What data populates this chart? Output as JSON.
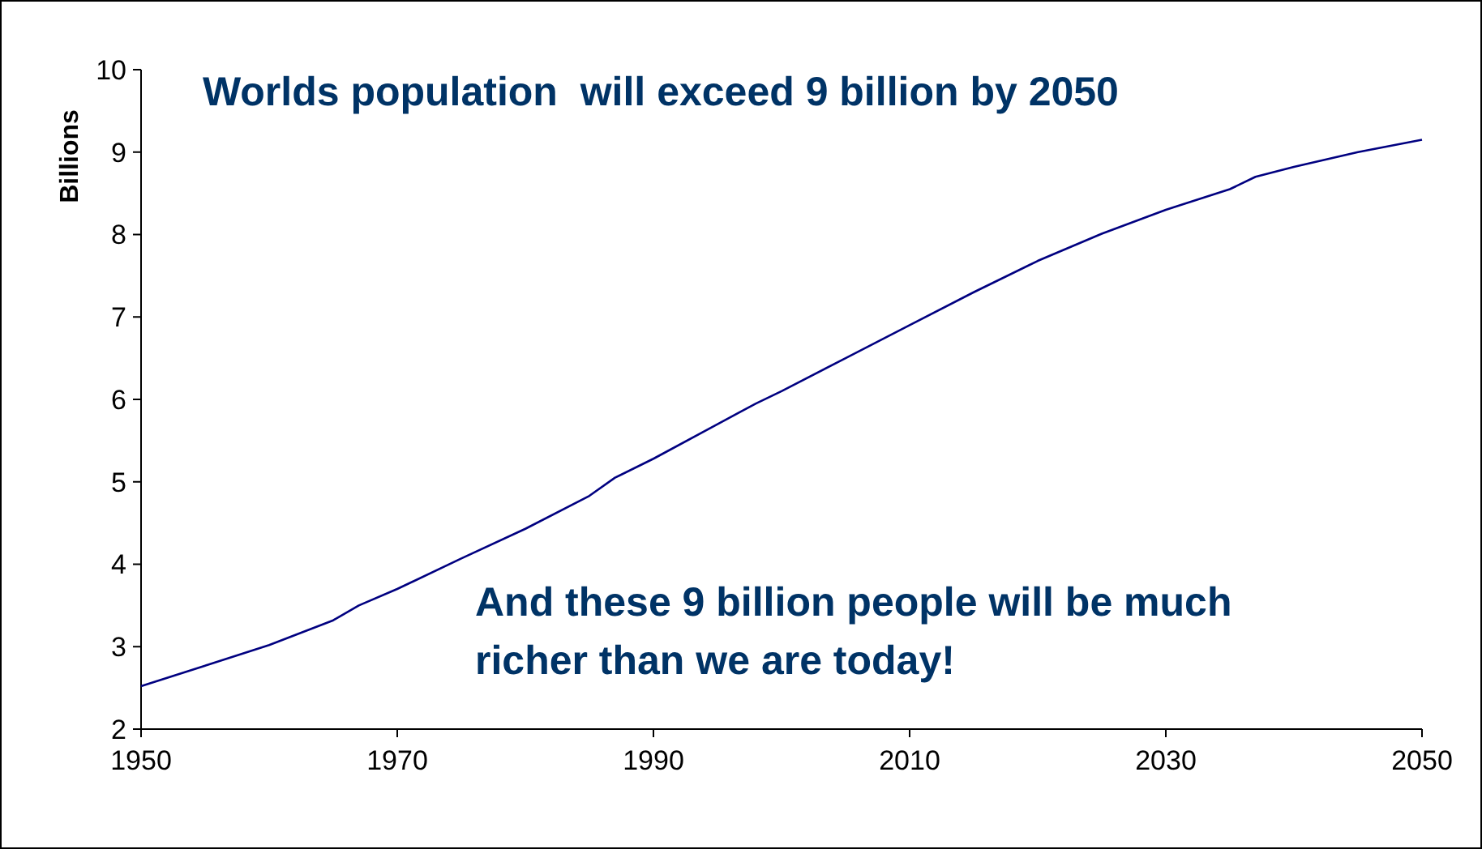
{
  "chart_data": {
    "type": "line",
    "title": "Worlds population  will exceed 9 billion by 2050",
    "ylabel": "Billions",
    "annotations": [
      "And these 9 billion people will be much richer than we are today!"
    ],
    "x": [
      1950,
      1955,
      1960,
      1965,
      1967,
      1970,
      1975,
      1980,
      1985,
      1987,
      1990,
      1995,
      1998,
      2000,
      2005,
      2010,
      2015,
      2020,
      2025,
      2030,
      2035,
      2037,
      2040,
      2045,
      2050
    ],
    "series": [
      {
        "color": "#000080",
        "values": [
          2.52,
          2.77,
          3.02,
          3.32,
          3.5,
          3.7,
          4.07,
          4.43,
          4.83,
          5.05,
          5.28,
          5.7,
          5.95,
          6.1,
          6.5,
          6.9,
          7.3,
          7.68,
          8.01,
          8.3,
          8.55,
          8.7,
          8.82,
          9.0,
          9.15
        ]
      }
    ],
    "xlim": [
      1950,
      2050
    ],
    "xticks": [
      1950,
      1970,
      1990,
      2010,
      2030,
      2050
    ],
    "ylim": [
      2,
      10
    ],
    "yticks": [
      2,
      3,
      4,
      5,
      6,
      7,
      8,
      9,
      10
    ],
    "grid": false,
    "marker": "none",
    "line_style": "solid"
  }
}
